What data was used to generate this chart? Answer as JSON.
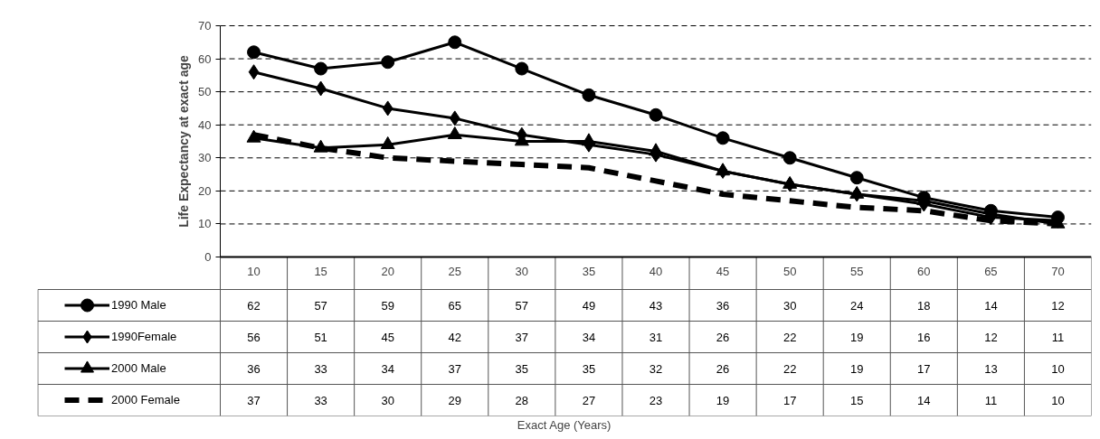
{
  "chart_data": {
    "type": "line",
    "annotations": [
      "Exact Age (Years)"
    ],
    "ylabel": "Life Expectancy at exact age",
    "categories": [
      "10",
      "15",
      "20",
      "25",
      "30",
      "35",
      "40",
      "45",
      "50",
      "55",
      "60",
      "65",
      "70"
    ],
    "series": [
      {
        "name": "1990 Male",
        "color": "#000000",
        "marker": "circle",
        "line_style": "solid",
        "values": [
          62,
          57,
          59,
          65,
          57,
          49,
          43,
          36,
          30,
          24,
          18,
          14,
          12
        ]
      },
      {
        "name": "1990Female",
        "color": "#000000",
        "marker": "diamond",
        "line_style": "solid",
        "values": [
          56,
          51,
          45,
          42,
          37,
          34,
          31,
          26,
          22,
          19,
          16,
          12,
          11
        ]
      },
      {
        "name": "2000 Male",
        "color": "#000000",
        "marker": "triangle",
        "line_style": "solid",
        "values": [
          36,
          33,
          34,
          37,
          35,
          35,
          32,
          26,
          22,
          19,
          17,
          13,
          10
        ]
      },
      {
        "name": "2000 Female",
        "color": "#000000",
        "marker": "none",
        "line_style": "dashed",
        "values": [
          37,
          33,
          30,
          29,
          28,
          27,
          23,
          19,
          17,
          15,
          14,
          11,
          10
        ]
      }
    ],
    "ylim": [
      0,
      70
    ],
    "yticks": [
      0,
      10,
      20,
      30,
      40,
      50,
      60,
      70
    ],
    "grid": "y",
    "legend": "bottom left",
    "data_labels": true
  }
}
